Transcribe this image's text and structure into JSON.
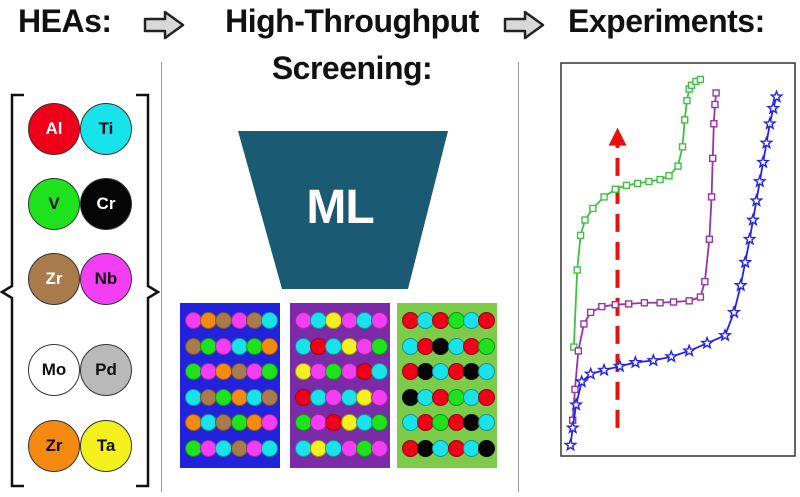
{
  "headers": {
    "heas": "HEAs:",
    "screening_line1": "High-Throughput",
    "screening_line2": "Screening:",
    "experiments": "Experiments:"
  },
  "elements": [
    {
      "symbol": "Al",
      "color": "#f00018",
      "text_color": "#ffffff"
    },
    {
      "symbol": "Ti",
      "color": "#19e3ea",
      "text_color": "#111111"
    },
    {
      "symbol": "V",
      "color": "#1ee21e",
      "text_color": "#111111"
    },
    {
      "symbol": "Cr",
      "color": "#050505",
      "text_color": "#ffffff"
    },
    {
      "symbol": "Zr",
      "color": "#a97a4c",
      "text_color": "#ffffff"
    },
    {
      "symbol": "Nb",
      "color": "#f43ef4",
      "text_color": "#111111"
    },
    {
      "symbol": "Mo",
      "color": "#ffffff",
      "text_color": "#111111"
    },
    {
      "symbol": "Pd",
      "color": "#b9b9b9",
      "text_color": "#111111"
    },
    {
      "symbol": "Zr",
      "color": "#f48a12",
      "text_color": "#111111"
    },
    {
      "symbol": "Ta",
      "color": "#f4f01e",
      "text_color": "#111111"
    }
  ],
  "ml": {
    "label": "ML",
    "color": "#1b5a73"
  },
  "grids": [
    {
      "frame": "#2222dd",
      "rows": [
        [
          "#f43ef4",
          "#f48a12",
          "#a97a4c",
          "#f43ef4",
          "#a97a4c",
          "#19e3ea"
        ],
        [
          "#a97a4c",
          "#1ee21e",
          "#f43ef4",
          "#19e3ea",
          "#1ee21e",
          "#f48a12"
        ],
        [
          "#1ee21e",
          "#f43ef4",
          "#f48a12",
          "#a97a4c",
          "#f43ef4",
          "#1ee21e"
        ],
        [
          "#19e3ea",
          "#a97a4c",
          "#1ee21e",
          "#f48a12",
          "#19e3ea",
          "#a97a4c"
        ],
        [
          "#f48a12",
          "#19e3ea",
          "#a97a4c",
          "#1ee21e",
          "#f48a12",
          "#f43ef4"
        ],
        [
          "#1ee21e",
          "#f43ef4",
          "#19e3ea",
          "#a97a4c",
          "#f43ef4",
          "#19e3ea"
        ]
      ]
    },
    {
      "frame": "#7b2aa8",
      "rows": [
        [
          "#f43ef4",
          "#19e3ea",
          "#f4f01e",
          "#f43ef4",
          "#19e3ea",
          "#f43ef4"
        ],
        [
          "#19e3ea",
          "#f00018",
          "#19e3ea",
          "#f4f01e",
          "#f43ef4",
          "#1ee21e"
        ],
        [
          "#f4f01e",
          "#f43ef4",
          "#1ee21e",
          "#f43ef4",
          "#f00018",
          "#19e3ea"
        ],
        [
          "#f00018",
          "#19e3ea",
          "#f43ef4",
          "#19e3ea",
          "#f4f01e",
          "#f43ef4"
        ],
        [
          "#1ee21e",
          "#f43ef4",
          "#f00018",
          "#f4f01e",
          "#19e3ea",
          "#1ee21e"
        ],
        [
          "#19e3ea",
          "#f4f01e",
          "#19e3ea",
          "#f43ef4",
          "#1ee21e",
          "#f43ef4"
        ]
      ]
    },
    {
      "frame": "#7ccc4a",
      "rows": [
        [
          "#f00018",
          "#19e3ea",
          "#f00018",
          "#1ee21e",
          "#19e3ea",
          "#f00018"
        ],
        [
          "#19e3ea",
          "#f00018",
          "#050505",
          "#19e3ea",
          "#f00018",
          "#1ee21e"
        ],
        [
          "#f00018",
          "#050505",
          "#19e3ea",
          "#f00018",
          "#050505",
          "#19e3ea"
        ],
        [
          "#050505",
          "#19e3ea",
          "#f00018",
          "#1ee21e",
          "#19e3ea",
          "#f00018"
        ],
        [
          "#19e3ea",
          "#f00018",
          "#1ee21e",
          "#f00018",
          "#050505",
          "#19e3ea"
        ],
        [
          "#f00018",
          "#050505",
          "#19e3ea",
          "#f00018",
          "#19e3ea",
          "#050505"
        ]
      ]
    }
  ],
  "chart_data": {
    "type": "line",
    "title": "",
    "xlabel": "",
    "ylabel": "",
    "xlim": [
      0,
      10
    ],
    "ylim": [
      0,
      10
    ],
    "series": [
      {
        "color": "#40c040",
        "marker": "square",
        "x": [
          0.35,
          0.5,
          0.65,
          0.85,
          1.2,
          1.7,
          2.2,
          2.7,
          3.2,
          3.7,
          4.2,
          4.6,
          5.0,
          5.2,
          5.3,
          5.4,
          5.5,
          5.6,
          5.8,
          6.0
        ],
        "y": [
          2.7,
          4.7,
          5.6,
          6.0,
          6.3,
          6.6,
          6.8,
          6.9,
          6.95,
          7.0,
          7.05,
          7.15,
          7.4,
          7.9,
          8.6,
          9.1,
          9.4,
          9.5,
          9.6,
          9.65
        ]
      },
      {
        "color": "#9933aa",
        "marker": "square",
        "x": [
          0.3,
          0.4,
          0.55,
          0.8,
          1.1,
          1.6,
          2.2,
          2.8,
          3.5,
          4.2,
          4.8,
          5.5,
          6.0,
          6.2,
          6.4,
          6.5,
          6.55,
          6.6,
          6.65,
          6.7
        ],
        "y": [
          0.8,
          1.6,
          2.6,
          3.3,
          3.6,
          3.75,
          3.8,
          3.82,
          3.85,
          3.85,
          3.87,
          3.9,
          4.0,
          4.4,
          5.5,
          6.6,
          7.6,
          8.5,
          9.0,
          9.3
        ]
      },
      {
        "color": "#2222ee",
        "marker": "star",
        "x": [
          0.2,
          0.3,
          0.45,
          0.7,
          1.1,
          1.7,
          2.4,
          3.1,
          3.9,
          4.7,
          5.5,
          6.3,
          7.1,
          7.5,
          7.8,
          8.0,
          8.2,
          8.35,
          8.5,
          8.65,
          8.8,
          8.95,
          9.1,
          9.25,
          9.4
        ],
        "y": [
          0.15,
          0.6,
          1.2,
          1.8,
          2.0,
          2.1,
          2.2,
          2.3,
          2.35,
          2.45,
          2.6,
          2.8,
          3.0,
          3.6,
          4.3,
          4.9,
          5.5,
          6.0,
          6.5,
          7.0,
          7.5,
          8.0,
          8.5,
          8.9,
          9.2
        ]
      }
    ],
    "arrow": {
      "color": "#e81010",
      "x": 2.3,
      "y_from": 0.6,
      "y_to": 8.4
    },
    "grid": false
  }
}
